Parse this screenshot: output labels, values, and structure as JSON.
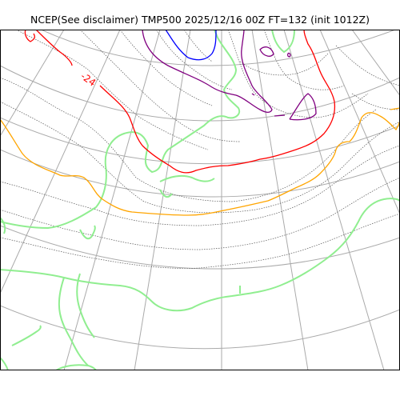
{
  "title": "NCEP(See disclaimer) TMP500 2025/12/16 00Z FT=132 (init 1012Z)",
  "contour_labels": {
    "red_isotherm": "-24"
  },
  "colors": {
    "graticule": "#aaaaaa",
    "coastline": "#90ee90",
    "isotherm_dotted": "#555555",
    "isotherm_blue": "#0000ff",
    "isotherm_purple": "#800080",
    "isotherm_red": "#ff0000",
    "isotherm_orange": "#ffa500",
    "frame": "#000000"
  }
}
